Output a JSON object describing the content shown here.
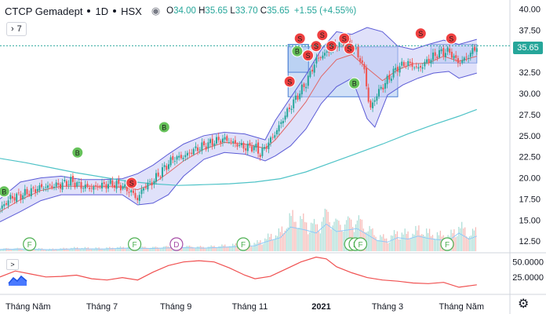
{
  "legend": {
    "symbol": "CTCP Gemadept",
    "interval": "1D",
    "exchange": "HSX",
    "open_label": "O",
    "open": "34.00",
    "high_label": "H",
    "high": "35.65",
    "low_label": "L",
    "low": "33.70",
    "close_label": "C",
    "close": "35.65",
    "change": "+1.55 (+4.55%)"
  },
  "collapse_count": "7",
  "indicator_toggle": ">",
  "colors": {
    "up": "#26a69a",
    "down": "#ef5350",
    "bollinger_line": "#5b5bd6",
    "bollinger_fill": "#c7c9f5",
    "basis_line": "#e06666",
    "long_ma": "#4fc3c7",
    "zone_fill": "#a9c6f0",
    "buy_marker": "#66c25a",
    "sell_marker": "#ef4040",
    "oscillator": "#f05050",
    "volume_up": "#a9ddd6",
    "volume_down": "#f6b7b4",
    "price_tag": "#26a69a"
  },
  "icons": {
    "eye": "eye-icon",
    "gear": "gear-icon",
    "logo": "tradingview-logo-icon"
  },
  "chart_data": {
    "type": "candlestick",
    "price_axis_ticks": [
      "40.00",
      "37.50",
      "35.65",
      "32.50",
      "30.00",
      "27.50",
      "25.00",
      "22.50",
      "20.00",
      "17.50",
      "15.00",
      "12.50"
    ],
    "price_ylim": [
      11.5,
      40.5
    ],
    "current_price": "35.65",
    "oscillator_ticks": [
      "50.0000",
      "25.0000"
    ],
    "oscillator_ylim": [
      0,
      60
    ],
    "time_axis_labels": [
      "Tháng Năm",
      "Tháng 7",
      "Tháng 9",
      "Tháng 11",
      "2021",
      "Tháng 3",
      "Tháng Năm"
    ],
    "time_axis_positions": [
      0.055,
      0.2,
      0.345,
      0.49,
      0.63,
      0.76,
      0.905
    ],
    "close_path": [
      [
        0.0,
        16.3
      ],
      [
        0.02,
        17.6
      ],
      [
        0.04,
        17.9
      ],
      [
        0.06,
        18.4
      ],
      [
        0.08,
        18.9
      ],
      [
        0.1,
        19.0
      ],
      [
        0.12,
        19.2
      ],
      [
        0.14,
        19.6
      ],
      [
        0.16,
        19.0
      ],
      [
        0.18,
        18.8
      ],
      [
        0.2,
        19.1
      ],
      [
        0.22,
        19.3
      ],
      [
        0.24,
        19.0
      ],
      [
        0.26,
        18.2
      ],
      [
        0.27,
        17.4
      ],
      [
        0.28,
        18.8
      ],
      [
        0.3,
        19.6
      ],
      [
        0.32,
        21.0
      ],
      [
        0.34,
        22.3
      ],
      [
        0.36,
        22.5
      ],
      [
        0.38,
        23.3
      ],
      [
        0.4,
        23.8
      ],
      [
        0.42,
        24.3
      ],
      [
        0.44,
        24.6
      ],
      [
        0.46,
        24.1
      ],
      [
        0.48,
        23.6
      ],
      [
        0.5,
        23.7
      ],
      [
        0.51,
        22.8
      ],
      [
        0.52,
        23.6
      ],
      [
        0.54,
        25.3
      ],
      [
        0.56,
        27.5
      ],
      [
        0.58,
        29.4
      ],
      [
        0.6,
        31.2
      ],
      [
        0.62,
        34.0
      ],
      [
        0.64,
        34.8
      ],
      [
        0.66,
        35.8
      ],
      [
        0.68,
        36.2
      ],
      [
        0.7,
        34.9
      ],
      [
        0.715,
        32.7
      ],
      [
        0.725,
        28.0
      ],
      [
        0.74,
        30.0
      ],
      [
        0.76,
        31.6
      ],
      [
        0.78,
        33.1
      ],
      [
        0.8,
        33.6
      ],
      [
        0.82,
        32.9
      ],
      [
        0.84,
        33.9
      ],
      [
        0.86,
        34.8
      ],
      [
        0.88,
        35.0
      ],
      [
        0.9,
        33.6
      ],
      [
        0.92,
        34.5
      ],
      [
        0.935,
        35.65
      ]
    ],
    "upper_band": [
      [
        0.0,
        17.5
      ],
      [
        0.04,
        19.5
      ],
      [
        0.08,
        20.0
      ],
      [
        0.12,
        20.2
      ],
      [
        0.16,
        19.8
      ],
      [
        0.2,
        19.8
      ],
      [
        0.24,
        19.9
      ],
      [
        0.27,
        20.5
      ],
      [
        0.3,
        21.5
      ],
      [
        0.33,
        22.8
      ],
      [
        0.36,
        24.0
      ],
      [
        0.4,
        25.0
      ],
      [
        0.44,
        25.4
      ],
      [
        0.48,
        25.2
      ],
      [
        0.52,
        24.5
      ],
      [
        0.54,
        26.8
      ],
      [
        0.57,
        29.5
      ],
      [
        0.6,
        32.2
      ],
      [
        0.63,
        35.2
      ],
      [
        0.66,
        37.3
      ],
      [
        0.69,
        37.0
      ],
      [
        0.72,
        37.8
      ],
      [
        0.75,
        37.3
      ],
      [
        0.78,
        35.6
      ],
      [
        0.81,
        35.2
      ],
      [
        0.84,
        35.8
      ],
      [
        0.87,
        36.3
      ],
      [
        0.9,
        35.8
      ],
      [
        0.935,
        36.4
      ]
    ],
    "lower_band": [
      [
        0.0,
        14.8
      ],
      [
        0.04,
        16.0
      ],
      [
        0.08,
        17.3
      ],
      [
        0.12,
        18.0
      ],
      [
        0.16,
        18.0
      ],
      [
        0.2,
        18.0
      ],
      [
        0.24,
        18.0
      ],
      [
        0.27,
        16.8
      ],
      [
        0.3,
        17.0
      ],
      [
        0.33,
        18.0
      ],
      [
        0.36,
        20.2
      ],
      [
        0.4,
        22.2
      ],
      [
        0.44,
        23.0
      ],
      [
        0.48,
        22.8
      ],
      [
        0.52,
        22.0
      ],
      [
        0.54,
        22.6
      ],
      [
        0.57,
        23.8
      ],
      [
        0.6,
        25.8
      ],
      [
        0.63,
        28.8
      ],
      [
        0.66,
        30.8
      ],
      [
        0.69,
        31.8
      ],
      [
        0.72,
        27.0
      ],
      [
        0.735,
        26.0
      ],
      [
        0.76,
        29.8
      ],
      [
        0.79,
        31.0
      ],
      [
        0.82,
        31.8
      ],
      [
        0.85,
        32.4
      ],
      [
        0.88,
        32.6
      ],
      [
        0.9,
        31.8
      ],
      [
        0.935,
        32.4
      ]
    ],
    "basis_line": [
      [
        0.0,
        16.0
      ],
      [
        0.04,
        17.4
      ],
      [
        0.08,
        18.5
      ],
      [
        0.12,
        19.0
      ],
      [
        0.16,
        19.0
      ],
      [
        0.2,
        19.0
      ],
      [
        0.24,
        18.9
      ],
      [
        0.27,
        18.6
      ],
      [
        0.3,
        19.3
      ],
      [
        0.33,
        20.6
      ],
      [
        0.36,
        22.0
      ],
      [
        0.4,
        23.4
      ],
      [
        0.44,
        24.2
      ],
      [
        0.48,
        24.0
      ],
      [
        0.52,
        23.5
      ],
      [
        0.54,
        24.5
      ],
      [
        0.57,
        26.7
      ],
      [
        0.6,
        29.0
      ],
      [
        0.63,
        32.0
      ],
      [
        0.66,
        34.0
      ],
      [
        0.69,
        34.6
      ],
      [
        0.72,
        33.0
      ],
      [
        0.75,
        31.5
      ],
      [
        0.78,
        32.8
      ],
      [
        0.81,
        33.5
      ],
      [
        0.84,
        33.6
      ],
      [
        0.87,
        34.4
      ],
      [
        0.9,
        33.8
      ],
      [
        0.935,
        34.4
      ]
    ],
    "long_ma": [
      [
        0.0,
        22.3
      ],
      [
        0.05,
        21.8
      ],
      [
        0.1,
        21.2
      ],
      [
        0.15,
        20.6
      ],
      [
        0.2,
        20.1
      ],
      [
        0.25,
        19.6
      ],
      [
        0.3,
        19.3
      ],
      [
        0.35,
        19.1
      ],
      [
        0.4,
        19.2
      ],
      [
        0.45,
        19.3
      ],
      [
        0.5,
        19.5
      ],
      [
        0.55,
        19.9
      ],
      [
        0.6,
        20.7
      ],
      [
        0.65,
        21.8
      ],
      [
        0.7,
        22.9
      ],
      [
        0.75,
        24.0
      ],
      [
        0.8,
        25.2
      ],
      [
        0.85,
        26.3
      ],
      [
        0.9,
        27.3
      ],
      [
        0.935,
        28.1
      ]
    ],
    "zones": [
      {
        "x0": 0.565,
        "x1": 0.78,
        "y0": 29.6,
        "y1": 35.5
      },
      {
        "x0": 0.565,
        "x1": 0.605,
        "y0": 32.5,
        "y1": 35.8
      },
      {
        "x0": 0.845,
        "x1": 0.935,
        "y0": 33.6,
        "y1": 35.8
      }
    ],
    "buy_markers": [
      {
        "x": 0.008,
        "y": 18.4,
        "label": "B"
      },
      {
        "x": 0.152,
        "y": 23.0,
        "label": "B"
      },
      {
        "x": 0.322,
        "y": 26.0,
        "label": "B"
      },
      {
        "x": 0.583,
        "y": 35.0,
        "label": "B"
      },
      {
        "x": 0.695,
        "y": 31.2,
        "label": "B"
      }
    ],
    "sell_markers": [
      {
        "x": 0.258,
        "y": 19.4,
        "label": "S"
      },
      {
        "x": 0.568,
        "y": 31.4,
        "label": "S"
      },
      {
        "x": 0.588,
        "y": 36.5,
        "label": "S"
      },
      {
        "x": 0.604,
        "y": 34.5,
        "label": "S"
      },
      {
        "x": 0.62,
        "y": 35.6,
        "label": "S"
      },
      {
        "x": 0.632,
        "y": 36.9,
        "label": "S"
      },
      {
        "x": 0.65,
        "y": 35.6,
        "label": "S"
      },
      {
        "x": 0.675,
        "y": 36.5,
        "label": "S"
      },
      {
        "x": 0.685,
        "y": 35.3,
        "label": "S"
      },
      {
        "x": 0.825,
        "y": 37.1,
        "label": "S"
      },
      {
        "x": 0.885,
        "y": 36.5,
        "label": "S"
      }
    ],
    "event_markers": [
      {
        "x": 0.058,
        "label": "F",
        "kind": "F"
      },
      {
        "x": 0.264,
        "label": "F",
        "kind": "F"
      },
      {
        "x": 0.346,
        "label": "D",
        "kind": "D"
      },
      {
        "x": 0.477,
        "label": "F",
        "kind": "F"
      },
      {
        "x": 0.688,
        "label": "F",
        "kind": "F"
      },
      {
        "x": 0.697,
        "label": "F",
        "kind": "F"
      },
      {
        "x": 0.707,
        "label": "F",
        "kind": "F"
      },
      {
        "x": 0.877,
        "label": "F",
        "kind": "F"
      }
    ],
    "volume_profile": [
      [
        0.0,
        0.06
      ],
      [
        0.05,
        0.07
      ],
      [
        0.1,
        0.05
      ],
      [
        0.15,
        0.08
      ],
      [
        0.2,
        0.07
      ],
      [
        0.25,
        0.1
      ],
      [
        0.3,
        0.09
      ],
      [
        0.35,
        0.12
      ],
      [
        0.4,
        0.1
      ],
      [
        0.45,
        0.14
      ],
      [
        0.5,
        0.18
      ],
      [
        0.52,
        0.3
      ],
      [
        0.55,
        0.45
      ],
      [
        0.57,
        0.8
      ],
      [
        0.6,
        0.7
      ],
      [
        0.62,
        0.6
      ],
      [
        0.64,
        0.9
      ],
      [
        0.66,
        0.65
      ],
      [
        0.68,
        0.7
      ],
      [
        0.7,
        0.75
      ],
      [
        0.72,
        0.55
      ],
      [
        0.74,
        0.35
      ],
      [
        0.76,
        0.3
      ],
      [
        0.78,
        0.45
      ],
      [
        0.8,
        0.4
      ],
      [
        0.82,
        0.5
      ],
      [
        0.84,
        0.42
      ],
      [
        0.86,
        0.38
      ],
      [
        0.88,
        0.35
      ],
      [
        0.9,
        0.6
      ],
      [
        0.92,
        0.4
      ],
      [
        0.935,
        0.5
      ]
    ],
    "oscillator": [
      [
        0.0,
        25
      ],
      [
        0.03,
        35
      ],
      [
        0.06,
        30
      ],
      [
        0.09,
        25
      ],
      [
        0.12,
        26
      ],
      [
        0.15,
        28
      ],
      [
        0.18,
        22
      ],
      [
        0.21,
        20
      ],
      [
        0.24,
        24
      ],
      [
        0.27,
        20
      ],
      [
        0.3,
        33
      ],
      [
        0.33,
        44
      ],
      [
        0.36,
        50
      ],
      [
        0.39,
        52
      ],
      [
        0.42,
        50
      ],
      [
        0.45,
        40
      ],
      [
        0.48,
        28
      ],
      [
        0.5,
        22
      ],
      [
        0.53,
        26
      ],
      [
        0.56,
        38
      ],
      [
        0.59,
        50
      ],
      [
        0.62,
        58
      ],
      [
        0.64,
        55
      ],
      [
        0.66,
        42
      ],
      [
        0.69,
        32
      ],
      [
        0.72,
        24
      ],
      [
        0.75,
        20
      ],
      [
        0.78,
        18
      ],
      [
        0.81,
        15
      ],
      [
        0.84,
        14
      ],
      [
        0.87,
        16
      ],
      [
        0.9,
        8
      ],
      [
        0.935,
        12
      ]
    ]
  }
}
